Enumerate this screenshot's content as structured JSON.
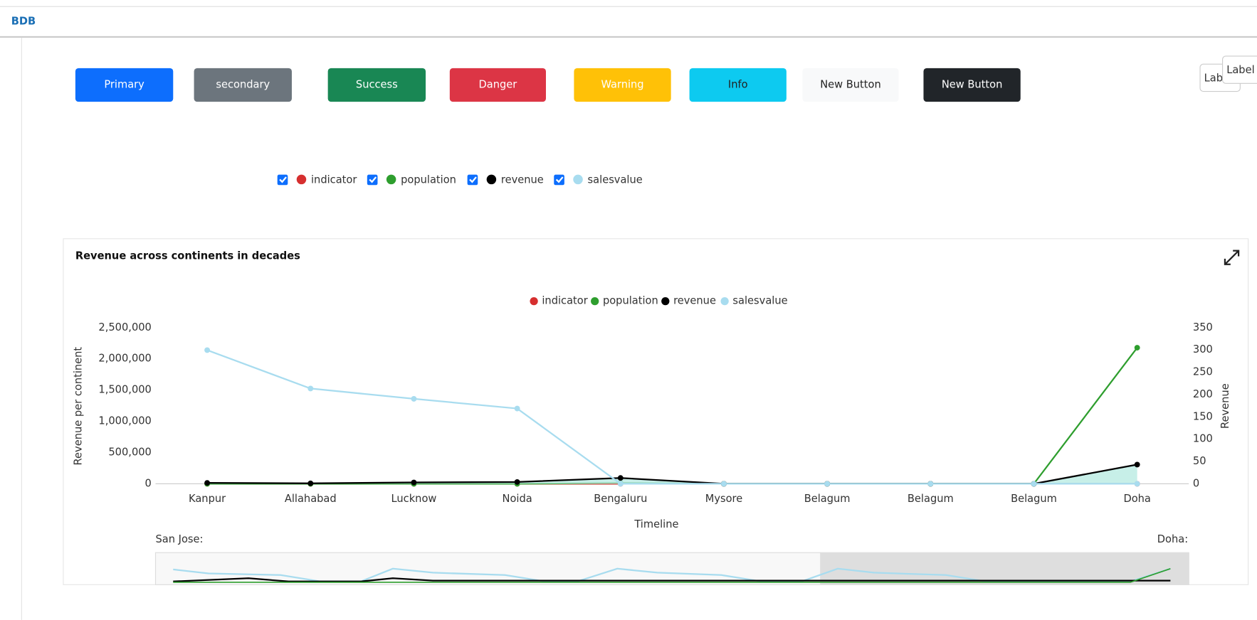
{
  "header": {
    "logo": "BDB"
  },
  "buttons": [
    "Primary",
    "secondary",
    "Success",
    "Danger",
    "Warning",
    "Info",
    "New Button",
    "New Button"
  ],
  "labels": [
    "Lab",
    "Label"
  ],
  "filters": [
    "indicator",
    "population",
    "revenue",
    "salesvalue"
  ],
  "chart_data": {
    "type": "line",
    "title": "Revenue across continents in decades",
    "x_label": "Timeline",
    "y_label": "Revenue per continent",
    "y2_label": "Revenue",
    "categories": [
      "Kanpur",
      "Allahabad",
      "Lucknow",
      "Noida",
      "Bengaluru",
      "Mysore",
      "Belagum",
      "Belagum",
      "Belagum",
      "Doha"
    ],
    "series": [
      {
        "name": "indicator",
        "color": "#d62f2f",
        "axis": "y2",
        "values": [
          0,
          0,
          0,
          0,
          0,
          0,
          0,
          0,
          0,
          0
        ]
      },
      {
        "name": "population",
        "color": "#2e9e2e",
        "axis": "y2",
        "values": [
          0,
          0,
          0,
          0,
          2,
          0,
          0,
          0,
          0,
          305
        ]
      },
      {
        "name": "revenue",
        "color": "#000000",
        "axis": "y2",
        "fill": "#b9ebe2",
        "values": [
          2,
          1,
          3,
          4,
          13,
          0,
          0,
          0,
          0,
          43
        ]
      },
      {
        "name": "salesvalue",
        "color": "#a8dcef",
        "values": [
          2140000,
          1525000,
          1360000,
          1205000,
          0,
          0,
          0,
          0,
          0,
          0
        ]
      }
    ],
    "ylim": [
      0,
      2500000
    ],
    "yticks": [
      0,
      {
        "value": 500000,
        "label": "500,000"
      },
      {
        "value": 1000000,
        "label": "1,000,000"
      },
      {
        "value": 1500000,
        "label": "1,500,000"
      },
      {
        "value": 2000000,
        "label": "2,000,000"
      },
      {
        "value": 2500000,
        "label": "2,500,000"
      }
    ],
    "y2lim": [
      0,
      350
    ],
    "y2ticks": [
      0,
      50,
      100,
      150,
      200,
      250,
      300,
      350
    ],
    "grid": false,
    "legend": "top",
    "navigator": {
      "start_label": "San Jose:",
      "end_label": "Doha:"
    }
  }
}
